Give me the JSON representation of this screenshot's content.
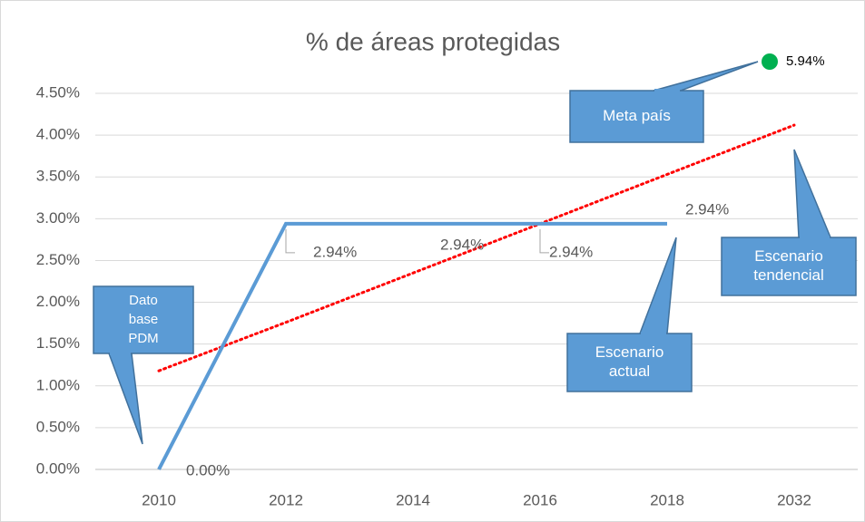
{
  "chart_data": {
    "type": "line",
    "title": "% de áreas protegidas",
    "categories": [
      "2010",
      "2012",
      "2014",
      "2016",
      "2018",
      "2032"
    ],
    "series": [
      {
        "color": "#5b9bd5",
        "values": [
          0,
          2.94,
          2.94,
          2.94,
          2.94,
          null
        ],
        "value_labels": [
          "0.00%",
          "2.94%",
          "2.94%",
          "2.94%",
          "2.94%",
          null
        ]
      }
    ],
    "trendline": {
      "color": "#ff0000",
      "values": [
        1.18,
        1.76,
        2.35,
        2.94,
        3.53,
        4.12
      ]
    },
    "ylim": [
      0,
      4.5
    ],
    "yticks": [
      {
        "value": 0,
        "label": "0.00%"
      },
      {
        "value": 0.5,
        "label": "0.50%"
      },
      {
        "value": 1,
        "label": "1.00%"
      },
      {
        "value": 1.5,
        "label": "1.50%"
      },
      {
        "value": 2,
        "label": "2.00%"
      },
      {
        "value": 2.5,
        "label": "2.50%"
      },
      {
        "value": 3,
        "label": "3.00%"
      },
      {
        "value": 3.5,
        "label": "3.50%"
      },
      {
        "value": 4,
        "label": "4.00%"
      },
      {
        "value": 4.5,
        "label": "4.50%"
      }
    ],
    "grid": true,
    "goal_label": "5.94%",
    "annotations": [
      {
        "lines": [
          "Dato",
          "base",
          "PDM"
        ]
      },
      {
        "lines": [
          "Meta país"
        ]
      },
      {
        "lines": [
          "Escenario",
          "actual"
        ]
      },
      {
        "lines": [
          "Escenario",
          "tendencial"
        ]
      }
    ]
  }
}
